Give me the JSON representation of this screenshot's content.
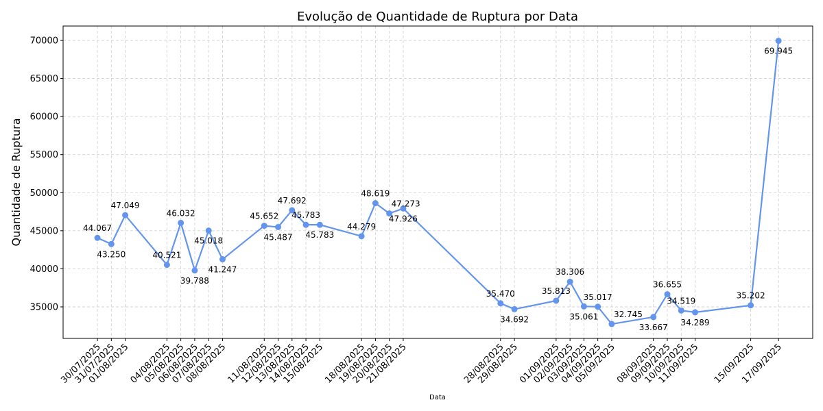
{
  "chart_data": {
    "type": "line",
    "title": "Evolução de Quantidade de Ruptura por Data",
    "xlabel": "Data",
    "ylabel": "Quantidade de Ruptura",
    "ylim": [
      30860,
      71890
    ],
    "yticks": [
      35000,
      40000,
      45000,
      50000,
      55000,
      60000,
      65000,
      70000
    ],
    "grid": true,
    "color": "#6495ed",
    "x": [
      "30/07/2025",
      "31/07/2025",
      "01/08/2025",
      "04/08/2025",
      "05/08/2025",
      "06/08/2025",
      "07/08/2025",
      "08/08/2025",
      "11/08/2025",
      "12/08/2025",
      "13/08/2025",
      "14/08/2025",
      "15/08/2025",
      "18/08/2025",
      "19/08/2025",
      "20/08/2025",
      "21/08/2025",
      "28/08/2025",
      "29/08/2025",
      "01/09/2025",
      "02/09/2025",
      "03/09/2025",
      "04/09/2025",
      "05/09/2025",
      "08/09/2025",
      "09/09/2025",
      "10/09/2025",
      "11/09/2025",
      "15/09/2025",
      "17/09/2025"
    ],
    "values": [
      44067,
      43250,
      47049,
      40521,
      46032,
      39788,
      45018,
      41247,
      45652,
      45487,
      47692,
      45783,
      45783,
      44279,
      48619,
      47273,
      47926,
      35470,
      34692,
      35813,
      38306,
      35061,
      35017,
      32745,
      33667,
      36655,
      34519,
      34289,
      35202,
      69945
    ],
    "labels": [
      "44.067",
      "43.250",
      "47.049",
      "40.521",
      "46.032",
      "39.788",
      "45.018",
      "41.247",
      "45.652",
      "45.487",
      "47.692",
      "45.783",
      "45.783",
      "44.279",
      "48.619",
      "47.273",
      "47.926",
      "35.470",
      "34.692",
      "35.813",
      "38.306",
      "35.061",
      "35.017",
      "32.745",
      "33.667",
      "36.655",
      "34.519",
      "34.289",
      "35.202",
      "69.945"
    ]
  }
}
